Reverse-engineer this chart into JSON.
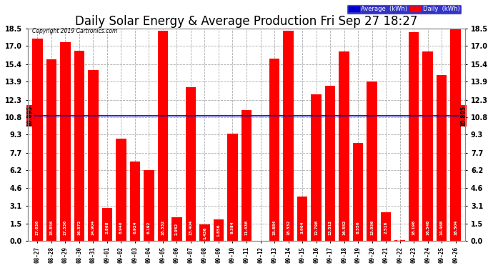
{
  "title": "Daily Solar Energy & Average Production Fri Sep 27 18:27",
  "copyright": "Copyright 2019 Cartronics.com",
  "average_value": 10.895,
  "categories": [
    "08-27",
    "08-28",
    "08-29",
    "08-30",
    "08-31",
    "09-01",
    "09-02",
    "09-03",
    "09-04",
    "09-05",
    "09-06",
    "09-07",
    "09-08",
    "09-09",
    "09-10",
    "09-11",
    "09-12",
    "09-13",
    "09-14",
    "09-15",
    "09-16",
    "09-17",
    "09-18",
    "09-19",
    "09-20",
    "09-21",
    "09-22",
    "09-23",
    "09-24",
    "09-25",
    "09-26"
  ],
  "values": [
    17.636,
    15.856,
    17.336,
    16.572,
    14.904,
    2.868,
    8.94,
    6.924,
    6.192,
    18.332,
    2.052,
    13.404,
    1.436,
    1.856,
    9.384,
    11.436,
    0.0,
    15.884,
    18.332,
    3.904,
    12.796,
    13.512,
    16.552,
    8.556,
    13.936,
    2.516,
    0.088,
    18.196,
    16.548,
    14.468,
    18.504
  ],
  "bar_color": "#ff0000",
  "avg_line_color": "#0000bb",
  "fig_bg": "#ffffff",
  "plot_bg": "#ffffff",
  "grid_color": "#aaaaaa",
  "yticks": [
    0.0,
    1.5,
    3.1,
    4.6,
    6.2,
    7.7,
    9.3,
    10.8,
    12.3,
    13.9,
    15.4,
    17.0,
    18.5
  ],
  "ylim": [
    0.0,
    18.5
  ],
  "title_fontsize": 12,
  "bar_width": 0.75,
  "legend_avg_color": "#0000cc",
  "legend_daily_color": "#ff0000",
  "avg_label": "10.895"
}
